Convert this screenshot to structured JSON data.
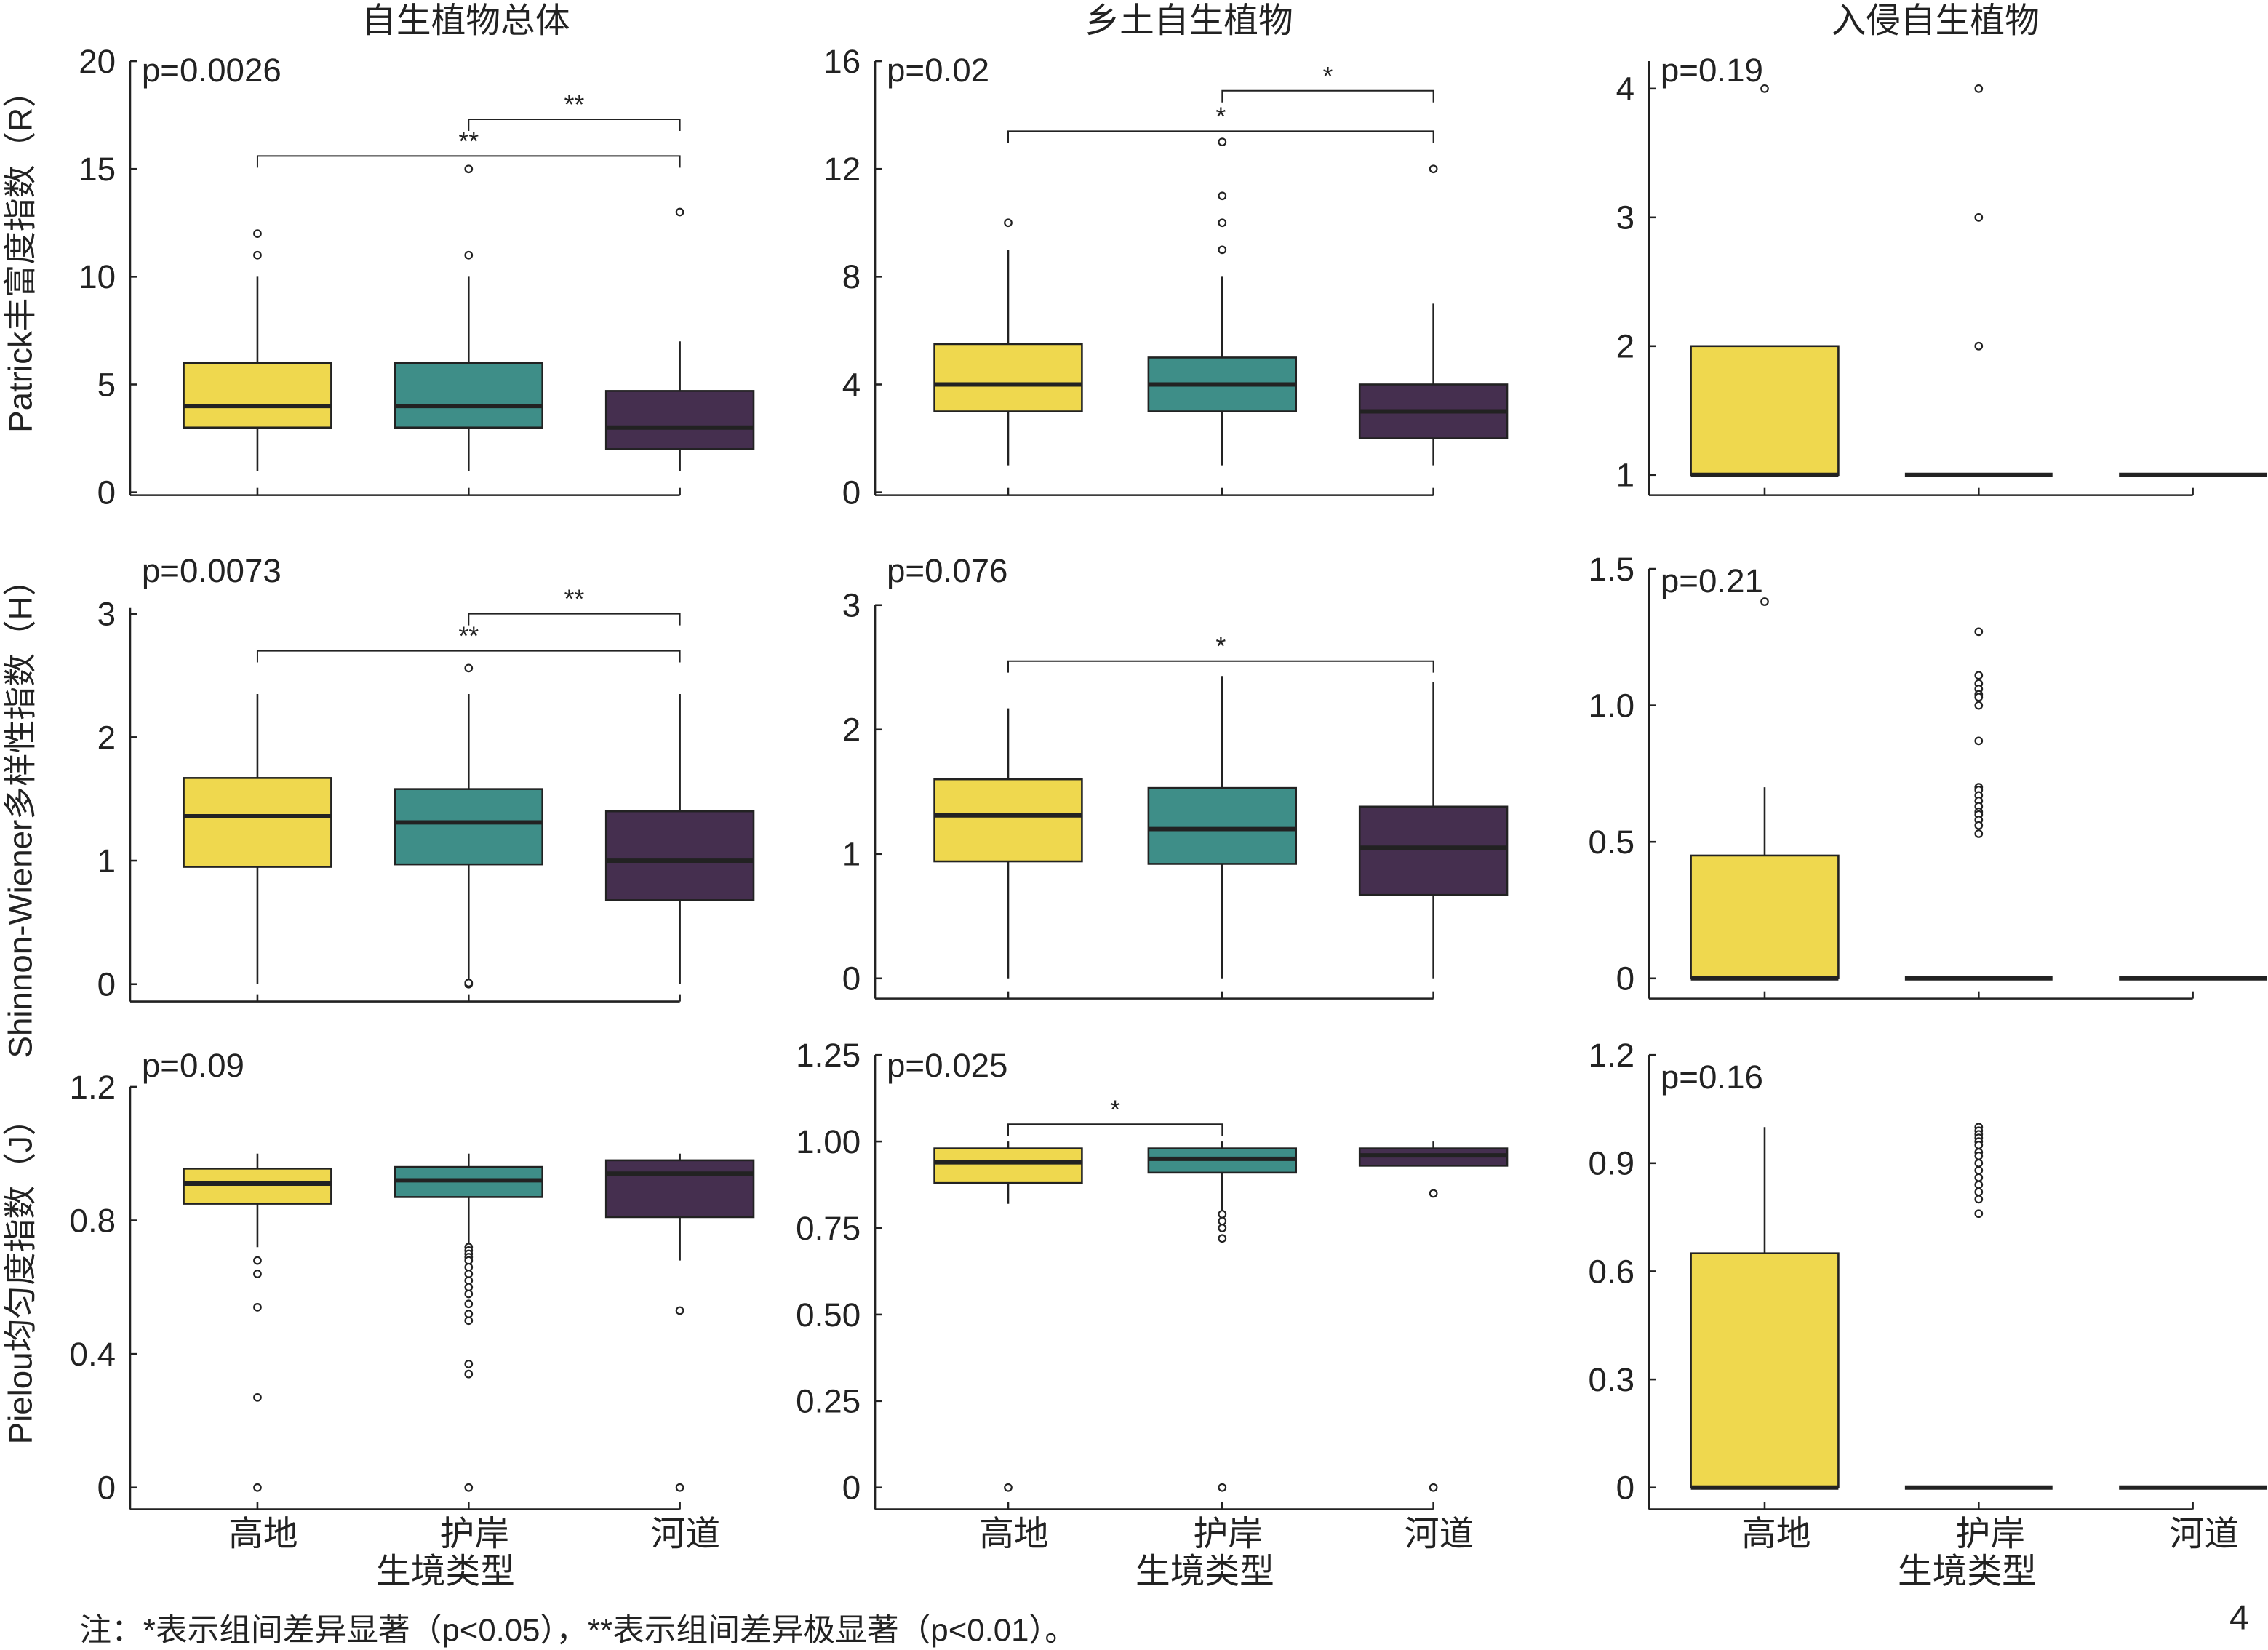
{
  "chart_data": {
    "type": "boxplot",
    "colors": {
      "高地": "#EFD84E",
      "护岸": "#3E8E88",
      "河道": "#452F4F"
    },
    "categories": [
      "高地",
      "护岸",
      "河道"
    ],
    "column_titles": [
      "自生植物总体",
      "乡土自生植物",
      "入侵自生植物"
    ],
    "row_labels": [
      "Patrick丰富度指数（R）",
      "Shinnon-Wiener多样性指数（H）",
      "Pielou均匀度指数（J）"
    ],
    "xlabel": "生境类型",
    "note": "注：*表示组间差异显著（p<0.05），**表示组间差异极显著（p<0.01）。",
    "page_number": "4",
    "panels": [
      {
        "p": "p=0.0026",
        "ticks": [
          0,
          5,
          10,
          15,
          20
        ],
        "tick_labels": [
          "0",
          "5",
          "10",
          "15",
          "20"
        ],
        "boxes": [
          {
            "q1": 3,
            "median": 4,
            "q3": 6,
            "lo": 1,
            "hi": 10,
            "outliers": [
              11,
              12
            ]
          },
          {
            "q1": 3,
            "median": 4,
            "q3": 6,
            "lo": 1,
            "hi": 10,
            "outliers": [
              11,
              15
            ]
          },
          {
            "q1": 2,
            "median": 3,
            "q3": 4.7,
            "lo": 1,
            "hi": 7,
            "outliers": [
              13
            ]
          }
        ],
        "brackets": [
          {
            "from": 1,
            "to": 2,
            "y": 17.3,
            "label": "**"
          },
          {
            "from": 0,
            "to": 2,
            "y": 15.6,
            "label": "**"
          }
        ]
      },
      {
        "p": "p=0.02",
        "ticks": [
          0,
          4,
          8,
          12,
          16
        ],
        "tick_labels": [
          "0",
          "4",
          "8",
          "12",
          "16"
        ],
        "boxes": [
          {
            "q1": 3,
            "median": 4,
            "q3": 5.5,
            "lo": 1,
            "hi": 9,
            "outliers": [
              10
            ]
          },
          {
            "q1": 3,
            "median": 4,
            "q3": 5,
            "lo": 1,
            "hi": 8,
            "outliers": [
              9,
              10,
              11,
              13
            ]
          },
          {
            "q1": 2,
            "median": 3,
            "q3": 4,
            "lo": 1,
            "hi": 7,
            "outliers": [
              12
            ]
          }
        ],
        "brackets": [
          {
            "from": 1,
            "to": 2,
            "y": 14.9,
            "label": "*"
          },
          {
            "from": 0,
            "to": 2,
            "y": 13.4,
            "label": "*"
          }
        ]
      },
      {
        "p": "p=0.19",
        "ticks": [
          1,
          2,
          3,
          4
        ],
        "tick_labels": [
          "1",
          "2",
          "3",
          "4"
        ],
        "boxes": [
          {
            "q1": 1,
            "median": 1,
            "q3": 2,
            "lo": 1,
            "hi": 2,
            "outliers": [
              4
            ]
          },
          {
            "q1": 1,
            "median": 1,
            "q3": 1,
            "lo": 1,
            "hi": 1,
            "outliers": [
              2,
              3,
              4
            ]
          },
          {
            "q1": 1,
            "median": 1,
            "q3": 1,
            "lo": 1,
            "hi": 1,
            "outliers": []
          }
        ],
        "brackets": []
      },
      {
        "p": "p=0.0073",
        "ticks": [
          0,
          1,
          2,
          3
        ],
        "tick_labels": [
          "0",
          "1",
          "2",
          "3"
        ],
        "boxes": [
          {
            "q1": 0.95,
            "median": 1.36,
            "q3": 1.67,
            "lo": 0,
            "hi": 2.35,
            "outliers": []
          },
          {
            "q1": 0.97,
            "median": 1.31,
            "q3": 1.58,
            "lo": 0.03,
            "hi": 2.35,
            "outliers": [
              2.56,
              0.0,
              0.01
            ]
          },
          {
            "q1": 0.68,
            "median": 1.0,
            "q3": 1.4,
            "lo": 0,
            "hi": 2.35,
            "outliers": []
          }
        ],
        "brackets": [
          {
            "from": 1,
            "to": 2,
            "y": 3.0,
            "label": "**"
          },
          {
            "from": 0,
            "to": 2,
            "y": 2.7,
            "label": "**"
          }
        ]
      },
      {
        "p": "p=0.076",
        "ticks": [
          0,
          1,
          2,
          3
        ],
        "tick_labels": [
          "0",
          "1",
          "2",
          "3"
        ],
        "boxes": [
          {
            "q1": 0.94,
            "median": 1.31,
            "q3": 1.6,
            "lo": 0,
            "hi": 2.17,
            "outliers": []
          },
          {
            "q1": 0.92,
            "median": 1.2,
            "q3": 1.53,
            "lo": 0,
            "hi": 2.43,
            "outliers": []
          },
          {
            "q1": 0.67,
            "median": 1.05,
            "q3": 1.38,
            "lo": 0,
            "hi": 2.38,
            "outliers": []
          }
        ],
        "brackets": [
          {
            "from": 0,
            "to": 2,
            "y": 2.55,
            "label": "*"
          }
        ]
      },
      {
        "p": "p=0.21",
        "ticks": [
          0,
          0.5,
          1.0,
          1.5
        ],
        "tick_labels": [
          "0",
          "0.5",
          "1.0",
          "1.5"
        ],
        "boxes": [
          {
            "q1": 0,
            "median": 0,
            "q3": 0.45,
            "lo": 0,
            "hi": 0.7,
            "outliers": [
              1.38
            ]
          },
          {
            "q1": 0,
            "median": 0,
            "q3": 0,
            "lo": 0,
            "hi": 0,
            "outliers": [
              1.27,
              1.11,
              1.08,
              1.06,
              1.04,
              1.03,
              1.0,
              0.87,
              0.7,
              0.69,
              0.67,
              0.65,
              0.63,
              0.61,
              0.6,
              0.58,
              0.56,
              0.53
            ]
          },
          {
            "q1": 0,
            "median": 0,
            "q3": 0,
            "lo": 0,
            "hi": 0,
            "outliers": []
          }
        ],
        "brackets": []
      },
      {
        "p": "p=0.09",
        "ticks": [
          0,
          0.4,
          0.8,
          1.2
        ],
        "tick_labels": [
          "0",
          "0.4",
          "0.8",
          "1.2"
        ],
        "boxes": [
          {
            "q1": 0.85,
            "median": 0.91,
            "q3": 0.955,
            "lo": 0.72,
            "hi": 1.0,
            "outliers": [
              0.68,
              0.64,
              0.54,
              0.27,
              0
            ]
          },
          {
            "q1": 0.87,
            "median": 0.92,
            "q3": 0.96,
            "lo": 0.73,
            "hi": 1.0,
            "outliers": [
              0.72,
              0.71,
              0.7,
              0.69,
              0.68,
              0.66,
              0.64,
              0.62,
              0.6,
              0.58,
              0.55,
              0.52,
              0.5,
              0.37,
              0.34,
              0
            ]
          },
          {
            "q1": 0.81,
            "median": 0.94,
            "q3": 0.98,
            "lo": 0.68,
            "hi": 1.0,
            "outliers": [
              0.53,
              0
            ]
          }
        ],
        "brackets": []
      },
      {
        "p": "p=0.025",
        "ticks": [
          0,
          0.25,
          0.5,
          0.75,
          1.0,
          1.25
        ],
        "tick_labels": [
          "0",
          "0.25",
          "0.50",
          "0.75",
          "1.00",
          "1.25"
        ],
        "boxes": [
          {
            "q1": 0.88,
            "median": 0.94,
            "q3": 0.98,
            "lo": 0.82,
            "hi": 1.0,
            "outliers": [
              0
            ]
          },
          {
            "q1": 0.91,
            "median": 0.95,
            "q3": 0.98,
            "lo": 0.8,
            "hi": 1.0,
            "outliers": [
              0.79,
              0.77,
              0.75,
              0.72,
              0
            ]
          },
          {
            "q1": 0.93,
            "median": 0.96,
            "q3": 0.98,
            "lo": 0.93,
            "hi": 1.0,
            "outliers": [
              0.85,
              0
            ]
          }
        ],
        "brackets": [
          {
            "from": 0,
            "to": 1,
            "y": 1.05,
            "label": "*"
          }
        ]
      },
      {
        "p": "p=0.16",
        "ticks": [
          0,
          0.3,
          0.6,
          0.9,
          1.2
        ],
        "tick_labels": [
          "0",
          "0.3",
          "0.6",
          "0.9",
          "1.2"
        ],
        "boxes": [
          {
            "q1": 0,
            "median": 0,
            "q3": 0.65,
            "lo": 0,
            "hi": 1.0,
            "outliers": []
          },
          {
            "q1": 0,
            "median": 0,
            "q3": 0,
            "lo": 0,
            "hi": 0,
            "outliers": [
              1.0,
              0.99,
              0.98,
              0.97,
              0.96,
              0.95,
              0.93,
              0.92,
              0.9,
              0.88,
              0.86,
              0.84,
              0.82,
              0.8,
              0.76
            ]
          },
          {
            "q1": 0,
            "median": 0,
            "q3": 0,
            "lo": 0,
            "hi": 0,
            "outliers": []
          }
        ],
        "brackets": []
      }
    ]
  }
}
